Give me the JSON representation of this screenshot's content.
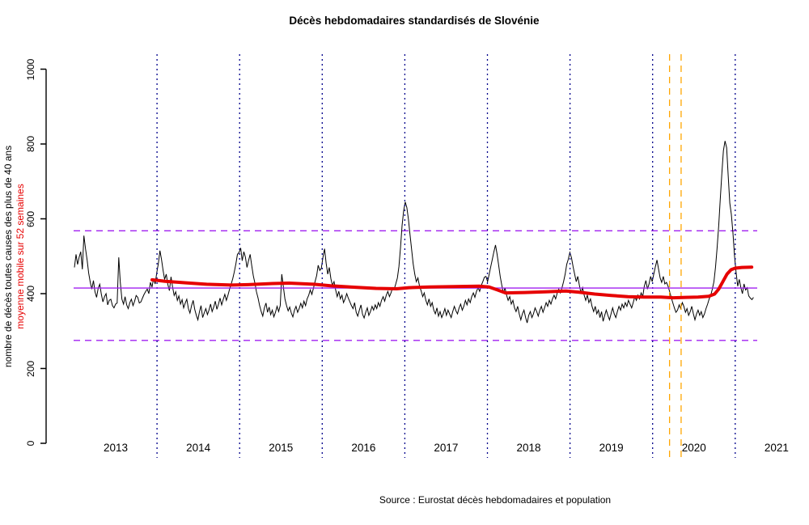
{
  "title": "Décès hebdomadaires standardisés de Slovénie",
  "source_caption": "Source : Eurostat décès hebdomadaires et population",
  "y_axis_label_primary": "nombre de décès toutes causes des plus de 40 ans",
  "y_axis_label_secondary": "moyenne mobile sur 52 semaines",
  "colors": {
    "weekly_line": "#000000",
    "moving_average": "#e60000",
    "mean_line": "#a020f0",
    "band_lines": "#a020f0",
    "year_gridlines": "#00008b",
    "event_lines": "#ffa500",
    "background": "#ffffff"
  },
  "chart_data": {
    "type": "line",
    "title": "Décès hebdomadaires standardisés de Slovénie",
    "xlabel": "",
    "ylabel": "nombre de décès toutes causes des plus de 40 ans / moyenne mobile sur 52 semaines",
    "ylim": [
      0,
      1000
    ],
    "y_ticks": [
      0,
      200,
      400,
      600,
      800,
      1000
    ],
    "x_tick_labels": [
      "2013",
      "2014",
      "2015",
      "2016",
      "2017",
      "2018",
      "2019",
      "2020",
      "2021"
    ],
    "x_start_year": 2013,
    "sampling": "weekly",
    "grid": "vertical dotted lines at each year boundary",
    "reference_lines": {
      "mean": 415,
      "upper_dashed": 568,
      "lower_dashed": 275,
      "year_gridlines": [
        2014,
        2015,
        2016,
        2017,
        2018,
        2019,
        2020,
        2021
      ],
      "vertical_event_lines_t": [
        2020.205,
        2020.345
      ]
    },
    "series": [
      {
        "name": "décès hebdomadaires (toutes causes, plus de 40 ans)",
        "color": "#000000",
        "year_order": [
          "2013",
          "2014",
          "2015",
          "2016",
          "2017",
          "2018",
          "2019",
          "2020",
          "2021"
        ],
        "values_by_year": {
          "2013": [
            470,
            505,
            478,
            498,
            512,
            465,
            555,
            520,
            490,
            455,
            430,
            412,
            435,
            405,
            390,
            415,
            425,
            398,
            378,
            392,
            400,
            370,
            382,
            385,
            368,
            362,
            372,
            375,
            497,
            430,
            385,
            372,
            392,
            370,
            360,
            376,
            385,
            368,
            380,
            395,
            390,
            375,
            378,
            388,
            398,
            406,
            412,
            400,
            430,
            418,
            440,
            426
          ],
          "2014": [
            455,
            480,
            515,
            492,
            462,
            438,
            452,
            425,
            408,
            445,
            418,
            395,
            405,
            382,
            394,
            372,
            384,
            362,
            375,
            385,
            360,
            348,
            368,
            382,
            358,
            342,
            330,
            352,
            368,
            336,
            348,
            360,
            344,
            356,
            372,
            352,
            364,
            380,
            358,
            372,
            388,
            370,
            384,
            398,
            382,
            396,
            412,
            425,
            440,
            458,
            480,
            505
          ],
          "2015": [
            510,
            522,
            488,
            512,
            498,
            470,
            488,
            505,
            476,
            448,
            428,
            405,
            388,
            368,
            352,
            340,
            362,
            375,
            350,
            364,
            344,
            356,
            338,
            350,
            366,
            352,
            368,
            452,
            418,
            386,
            368,
            354,
            364,
            348,
            338,
            356,
            366,
            350,
            360,
            374,
            362,
            380,
            368,
            386,
            396,
            410,
            398,
            415,
            432,
            448,
            476,
            462
          ],
          "2016": [
            468,
            497,
            520,
            482,
            452,
            470,
            440,
            422,
            432,
            410,
            392,
            406,
            386,
            396,
            376,
            386,
            400,
            388,
            378,
            368,
            360,
            376,
            350,
            340,
            356,
            370,
            345,
            335,
            350,
            362,
            342,
            352,
            366,
            356,
            370,
            360,
            376,
            366,
            382,
            392,
            380,
            396,
            406,
            392,
            402,
            416,
            412,
            426,
            442,
            472,
            524,
            582
          ],
          "2017": [
            622,
            645,
            630,
            598,
            558,
            518,
            480,
            452,
            432,
            442,
            420,
            408,
            392,
            402,
            382,
            370,
            386,
            366,
            376,
            356,
            346,
            362,
            340,
            352,
            336,
            346,
            360,
            342,
            356,
            346,
            336,
            352,
            366,
            354,
            346,
            362,
            372,
            356,
            366,
            382,
            370,
            386,
            376,
            392,
            402,
            390,
            406,
            416,
            406,
            422,
            432,
            444
          ],
          "2018": [
            446,
            432,
            452,
            472,
            492,
            512,
            530,
            506,
            476,
            446,
            422,
            402,
            416,
            396,
            382,
            392,
            372,
            382,
            362,
            352,
            366,
            346,
            330,
            346,
            356,
            336,
            322,
            342,
            352,
            336,
            346,
            362,
            352,
            340,
            356,
            366,
            350,
            362,
            376,
            366,
            382,
            372,
            386,
            396,
            386,
            402,
            412,
            402,
            416,
            432,
            452,
            478
          ],
          "2019": [
            492,
            510,
            496,
            472,
            452,
            432,
            446,
            422,
            402,
            416,
            396,
            382,
            396,
            376,
            386,
            366,
            352,
            366,
            346,
            356,
            336,
            352,
            326,
            342,
            356,
            342,
            330,
            346,
            362,
            346,
            336,
            352,
            366,
            356,
            372,
            362,
            376,
            366,
            382,
            372,
            362,
            376,
            392,
            382,
            396,
            386,
            402,
            392,
            420,
            435,
            412,
            426
          ],
          "2020": [
            446,
            432,
            452,
            472,
            490,
            466,
            442,
            430,
            446,
            426,
            430,
            420,
            406,
            390,
            376,
            362,
            350,
            356,
            370,
            360,
            376,
            366,
            350,
            360,
            342,
            352,
            366,
            346,
            330,
            346,
            356,
            342,
            352,
            336,
            346,
            360,
            372,
            386,
            396,
            412,
            432,
            472,
            522,
            582,
            652,
            722,
            782,
            808,
            790,
            716,
            642,
            612
          ],
          "2021": [
            562,
            502,
            456,
            420,
            438,
            416,
            400,
            426,
            410,
            416,
            394,
            388,
            384,
            390
          ]
        }
      },
      {
        "name": "moyenne mobile sur 52 semaines",
        "color": "#e60000",
        "points_t_v": [
          [
            2013.94,
            437
          ],
          [
            2014.1,
            433
          ],
          [
            2014.35,
            429
          ],
          [
            2014.6,
            425
          ],
          [
            2014.9,
            423
          ],
          [
            2015.1,
            424
          ],
          [
            2015.4,
            427
          ],
          [
            2015.6,
            428
          ],
          [
            2015.9,
            425
          ],
          [
            2016.1,
            421
          ],
          [
            2016.4,
            417
          ],
          [
            2016.65,
            414
          ],
          [
            2016.9,
            413
          ],
          [
            2017.05,
            416
          ],
          [
            2017.3,
            418
          ],
          [
            2017.6,
            419
          ],
          [
            2017.9,
            420
          ],
          [
            2018.02,
            418
          ],
          [
            2018.12,
            410
          ],
          [
            2018.22,
            402
          ],
          [
            2018.45,
            403
          ],
          [
            2018.7,
            405
          ],
          [
            2018.95,
            407
          ],
          [
            2019.1,
            404
          ],
          [
            2019.3,
            399
          ],
          [
            2019.5,
            395
          ],
          [
            2019.7,
            392
          ],
          [
            2019.9,
            391
          ],
          [
            2020.1,
            391
          ],
          [
            2020.25,
            389
          ],
          [
            2020.4,
            390
          ],
          [
            2020.55,
            391
          ],
          [
            2020.68,
            393
          ],
          [
            2020.75,
            399
          ],
          [
            2020.8,
            412
          ],
          [
            2020.85,
            432
          ],
          [
            2020.9,
            452
          ],
          [
            2020.95,
            464
          ],
          [
            2021.0,
            468
          ],
          [
            2021.08,
            470
          ],
          [
            2021.2,
            471
          ]
        ]
      }
    ]
  }
}
